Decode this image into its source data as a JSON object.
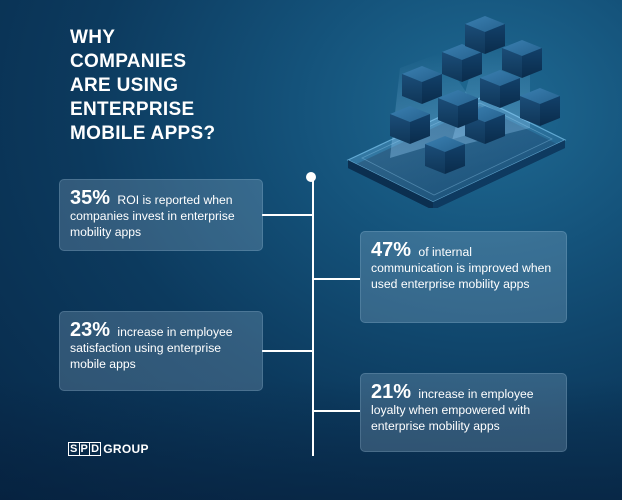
{
  "title_lines": [
    "WHY",
    "COMPANIES",
    "ARE USING",
    "ENTERPRISE",
    "MOBILE APPS?"
  ],
  "stats": [
    {
      "percent": "35%",
      "text": "ROI is reported when companies invest in enterprise mobility apps"
    },
    {
      "percent": "47%",
      "text": "of internal communication is improved when used enterprise mobility apps"
    },
    {
      "percent": "23%",
      "text": "increase in employee satisfaction using enterprise mobile apps"
    },
    {
      "percent": "21%",
      "text": "increase in employee loyalty when empowered with enterprise mobility apps"
    }
  ],
  "logo": {
    "letters": [
      "S",
      "P",
      "D"
    ],
    "word": "GROUP"
  },
  "colors": {
    "background_dark": "#072848",
    "background_light": "#1f6a93",
    "card_fill": "rgba(185,212,235,0.22)",
    "text": "#ffffff"
  },
  "illustration": "smartphone-with-floating-cubes"
}
